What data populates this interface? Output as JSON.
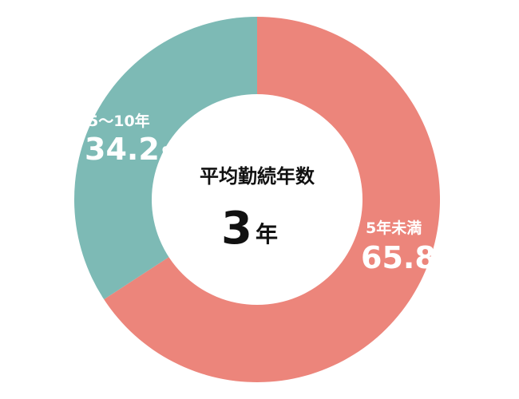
{
  "chart_data": {
    "type": "pie",
    "categories": [
      "5年未満",
      "5～10年"
    ],
    "values": [
      65.8,
      34.2
    ],
    "value_suffix": "%",
    "colors": [
      "#ec857b",
      "#7dbab5"
    ],
    "center": {
      "title": "平均勤続年数",
      "value": "3",
      "unit": "年"
    }
  }
}
